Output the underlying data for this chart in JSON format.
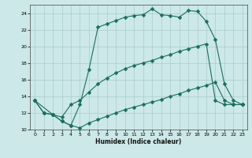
{
  "xlabel": "Humidex (Indice chaleur)",
  "background_color": "#cce8e8",
  "grid_color": "#aacccc",
  "line_color": "#1a6e60",
  "xlim": [
    -0.5,
    23.5
  ],
  "ylim": [
    10,
    25
  ],
  "xticks": [
    0,
    1,
    2,
    3,
    4,
    5,
    6,
    7,
    8,
    9,
    10,
    11,
    12,
    13,
    14,
    15,
    16,
    17,
    18,
    19,
    20,
    21,
    22,
    23
  ],
  "yticks": [
    10,
    12,
    14,
    16,
    18,
    20,
    22,
    24
  ],
  "series": [
    {
      "x": [
        0,
        1,
        2,
        3,
        4,
        5,
        6,
        7,
        8,
        9,
        10,
        11,
        12,
        13,
        14,
        15,
        16,
        17,
        18,
        19,
        20,
        21,
        22,
        23
      ],
      "y": [
        13.5,
        12.0,
        11.8,
        11.0,
        10.5,
        10.2,
        10.8,
        11.2,
        11.6,
        12.0,
        12.4,
        12.7,
        13.0,
        13.3,
        13.6,
        14.0,
        14.3,
        14.7,
        15.0,
        15.3,
        15.7,
        13.5,
        13.0,
        13.0
      ],
      "marker": "D",
      "markersize": 2.5
    },
    {
      "x": [
        0,
        1,
        2,
        3,
        4,
        5,
        6,
        7,
        8,
        9,
        10,
        11,
        12,
        13,
        14,
        15,
        16,
        17,
        18,
        19,
        20,
        21,
        22,
        23
      ],
      "y": [
        13.5,
        12.0,
        11.8,
        11.5,
        13.0,
        13.5,
        14.5,
        15.5,
        16.2,
        16.8,
        17.3,
        17.7,
        18.0,
        18.3,
        18.7,
        19.0,
        19.4,
        19.7,
        20.0,
        20.3,
        13.5,
        13.0,
        13.0,
        13.0
      ],
      "marker": "D",
      "markersize": 2.5
    },
    {
      "x": [
        0,
        2,
        3,
        4,
        5,
        6,
        7,
        8,
        9,
        10,
        11,
        12,
        13,
        14,
        15,
        16,
        17,
        18,
        19,
        20,
        21,
        22,
        23
      ],
      "y": [
        13.5,
        11.8,
        11.0,
        10.5,
        13.0,
        17.2,
        22.3,
        22.7,
        23.1,
        23.5,
        23.7,
        23.8,
        24.5,
        23.8,
        23.7,
        23.5,
        24.3,
        24.2,
        23.0,
        20.8,
        15.5,
        13.5,
        13.0
      ],
      "marker": "D",
      "markersize": 2.5
    }
  ]
}
